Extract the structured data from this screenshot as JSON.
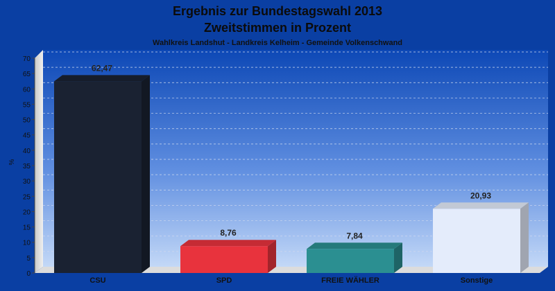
{
  "chart_data": {
    "type": "bar",
    "title": "Ergebnis zur Bundestagswahl 2013",
    "title2": "Zweitstimmen in Prozent",
    "subtitle": "Wahlkreis Landshut - Landkreis Kelheim - Gemeinde Volkenschwand",
    "ylabel": "%",
    "ylim": [
      0,
      70
    ],
    "yticks": [
      0,
      5,
      10,
      15,
      20,
      25,
      30,
      35,
      40,
      45,
      50,
      55,
      60,
      65,
      70
    ],
    "grid": true,
    "categories": [
      "CSU",
      "SPD",
      "FREIE WÄHLER",
      "Sonstige"
    ],
    "values": [
      62.47,
      8.76,
      7.84,
      20.93
    ],
    "value_labels": [
      "62,47",
      "8,76",
      "7,84",
      "20,93"
    ],
    "colors": [
      "#1a2232",
      "#e8333d",
      "#2b8f91",
      "#e4ecfb"
    ]
  }
}
